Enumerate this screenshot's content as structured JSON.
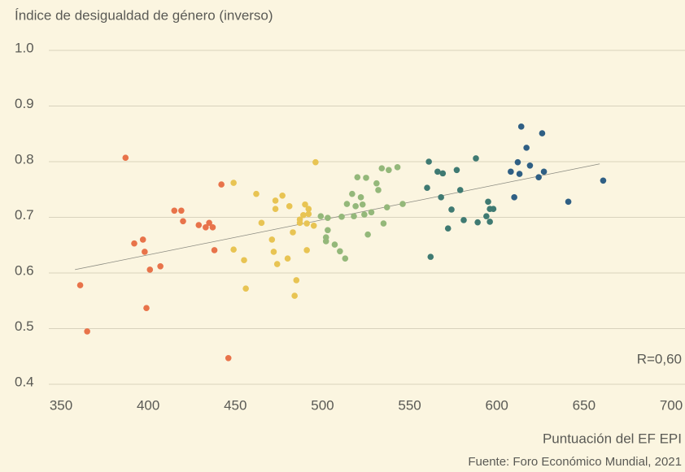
{
  "chart_data": {
    "type": "scatter",
    "title": "Índice de desigualdad de género (inverso)",
    "x_label": "Puntuación del EF EPI",
    "source": "Fuente: Foro Económico Mundial, 2021",
    "annotation": "R=0,60",
    "xlim": [
      350,
      700
    ],
    "xticks": [
      350,
      400,
      450,
      500,
      550,
      600,
      650,
      700
    ],
    "ylim": [
      0.4,
      1
    ],
    "yticks": [
      0.4,
      0.5,
      0.6,
      0.7,
      0.8,
      0.9,
      {
        "value": 1,
        "label": "1.0"
      }
    ],
    "grid": true,
    "trend_line": {
      "color": "#8a8a80",
      "x": [
        358,
        659
      ],
      "y": [
        0.606,
        0.796
      ]
    },
    "series": [
      {
        "color": "#e8734a",
        "x": [
          387,
          361,
          365,
          392,
          397,
          398,
          401,
          399,
          407,
          415,
          419,
          420,
          429,
          433,
          435,
          437,
          438,
          442,
          446
        ],
        "y": [
          0.807,
          0.578,
          0.495,
          0.653,
          0.66,
          0.638,
          0.606,
          0.537,
          0.612,
          0.712,
          0.712,
          0.693,
          0.686,
          0.682,
          0.69,
          0.682,
          0.641,
          0.759,
          0.447
        ]
      },
      {
        "color": "#e8c453",
        "x": [
          449,
          449,
          455,
          456,
          462,
          465,
          471,
          472,
          473,
          473,
          474,
          477,
          480,
          481,
          483,
          485,
          484,
          487,
          487,
          489,
          490,
          491,
          491,
          492,
          492,
          495,
          496
        ],
        "y": [
          0.762,
          0.642,
          0.623,
          0.572,
          0.742,
          0.69,
          0.66,
          0.638,
          0.715,
          0.73,
          0.616,
          0.739,
          0.626,
          0.72,
          0.673,
          0.587,
          0.559,
          0.69,
          0.696,
          0.704,
          0.723,
          0.689,
          0.641,
          0.715,
          0.706,
          0.685,
          0.799
        ]
      },
      {
        "color": "#94b87a",
        "x": [
          499,
          502,
          502,
          503,
          503,
          507,
          510,
          511,
          513,
          514,
          517,
          518,
          519,
          520,
          522,
          523,
          524,
          525,
          526,
          528,
          531,
          532,
          534,
          535,
          537,
          538,
          543,
          546
        ],
        "y": [
          0.702,
          0.657,
          0.664,
          0.699,
          0.677,
          0.651,
          0.639,
          0.701,
          0.626,
          0.724,
          0.742,
          0.702,
          0.72,
          0.772,
          0.736,
          0.723,
          0.705,
          0.771,
          0.669,
          0.709,
          0.761,
          0.749,
          0.788,
          0.689,
          0.718,
          0.785,
          0.79,
          0.724
        ]
      },
      {
        "color": "#3f7a72",
        "x": [
          560,
          561,
          562,
          566,
          568,
          569,
          572,
          574,
          577,
          579,
          581,
          588,
          589,
          594,
          595,
          596,
          596,
          598
        ],
        "y": [
          0.753,
          0.8,
          0.629,
          0.782,
          0.736,
          0.779,
          0.68,
          0.714,
          0.785,
          0.749,
          0.695,
          0.806,
          0.691,
          0.702,
          0.728,
          0.715,
          0.692,
          0.715
        ]
      },
      {
        "color": "#2f5f84",
        "x": [
          608,
          610,
          612,
          613,
          614,
          617,
          619,
          624,
          626,
          627,
          641,
          661
        ],
        "y": [
          0.782,
          0.736,
          0.799,
          0.778,
          0.863,
          0.825,
          0.793,
          0.772,
          0.851,
          0.782,
          0.728,
          0.766
        ]
      }
    ]
  }
}
